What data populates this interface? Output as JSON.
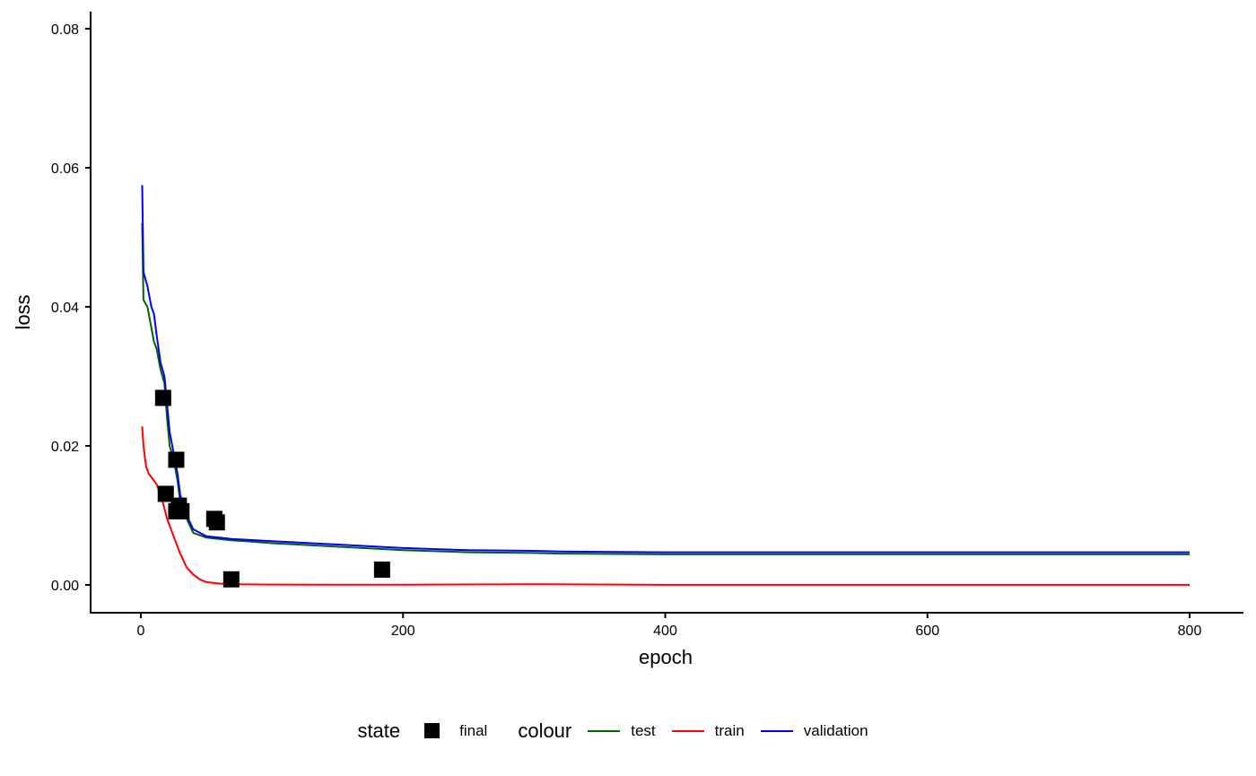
{
  "chart_data": {
    "type": "line",
    "title": "",
    "xlabel": "epoch",
    "ylabel": "loss",
    "xlim": [
      -40,
      840
    ],
    "ylim": [
      -0.004,
      0.082
    ],
    "x_ticks": [
      0,
      200,
      400,
      600,
      800
    ],
    "x_tick_labels": [
      "0",
      "200",
      "400",
      "600",
      "800"
    ],
    "y_ticks": [
      0.0,
      0.02,
      0.04,
      0.06,
      0.08
    ],
    "y_tick_labels": [
      "0.00",
      "0.02",
      "0.04",
      "0.06",
      "0.08"
    ],
    "grid": false,
    "legend_position": "bottom",
    "series": [
      {
        "name": "test",
        "color": "#006400",
        "x": [
          1,
          2,
          5,
          8,
          10,
          12,
          15,
          18,
          20,
          22,
          25,
          28,
          30,
          35,
          40,
          50,
          60,
          70,
          80,
          100,
          120,
          150,
          200,
          250,
          300,
          320,
          400,
          500,
          600,
          700,
          800
        ],
        "y": [
          0.052,
          0.041,
          0.04,
          0.037,
          0.035,
          0.034,
          0.031,
          0.029,
          0.024,
          0.02,
          0.018,
          0.015,
          0.012,
          0.0095,
          0.0075,
          0.0068,
          0.0066,
          0.0064,
          0.0063,
          0.006,
          0.0058,
          0.0055,
          0.005,
          0.0047,
          0.0046,
          0.0045,
          0.0044,
          0.0044,
          0.0044,
          0.0044,
          0.0044
        ]
      },
      {
        "name": "train",
        "color": "#FF0000",
        "x": [
          1,
          2,
          4,
          6,
          8,
          10,
          12,
          15,
          18,
          20,
          25,
          30,
          35,
          40,
          45,
          50,
          60,
          70,
          100,
          200,
          300,
          400,
          500,
          600,
          700,
          800
        ],
        "y": [
          0.0228,
          0.02,
          0.017,
          0.016,
          0.0155,
          0.015,
          0.0145,
          0.013,
          0.011,
          0.0095,
          0.007,
          0.0045,
          0.0025,
          0.0015,
          0.0008,
          0.0004,
          0.0002,
          0.0001,
          5e-05,
          2e-05,
          0.0001,
          1e-05,
          1e-05,
          1e-05,
          1e-05,
          1e-05
        ]
      },
      {
        "name": "validation",
        "color": "#0000FF",
        "x": [
          1,
          2,
          5,
          8,
          10,
          12,
          15,
          18,
          20,
          22,
          25,
          28,
          30,
          35,
          40,
          50,
          60,
          70,
          80,
          100,
          120,
          150,
          200,
          250,
          300,
          320,
          400,
          500,
          600,
          700,
          800
        ],
        "y": [
          0.0575,
          0.045,
          0.043,
          0.04,
          0.039,
          0.036,
          0.032,
          0.03,
          0.026,
          0.022,
          0.019,
          0.016,
          0.013,
          0.01,
          0.008,
          0.007,
          0.0068,
          0.0066,
          0.0065,
          0.0063,
          0.0061,
          0.0058,
          0.0053,
          0.005,
          0.0049,
          0.0048,
          0.0047,
          0.0047,
          0.0047,
          0.0047,
          0.0047
        ]
      }
    ],
    "points": {
      "name": "final",
      "shape": "square",
      "color": "#000000",
      "x": [
        17,
        19,
        27,
        29,
        27,
        29,
        31,
        56,
        58,
        69,
        184
      ],
      "y": [
        0.0269,
        0.0131,
        0.018,
        0.0114,
        0.0106,
        0.0106,
        0.0106,
        0.0095,
        0.009,
        0.0008,
        0.0022
      ]
    }
  },
  "legend": {
    "state_title": "state",
    "state_items": [
      {
        "label": "final"
      }
    ],
    "colour_title": "colour",
    "colour_items": [
      {
        "label": "test",
        "color": "#006400"
      },
      {
        "label": "train",
        "color": "#FF0000"
      },
      {
        "label": "validation",
        "color": "#0000FF"
      }
    ]
  }
}
